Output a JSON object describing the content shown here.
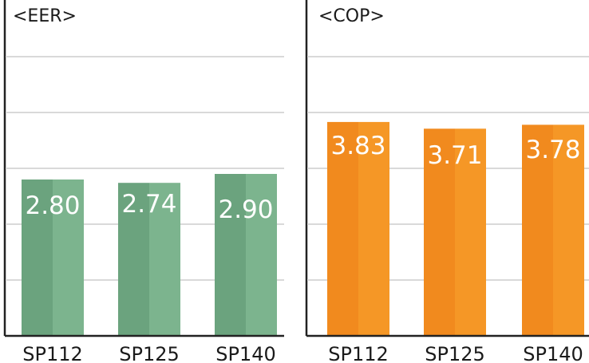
{
  "chart_data": [
    {
      "type": "bar",
      "title": "<EER>",
      "categories": [
        "SP112",
        "SP125",
        "SP140"
      ],
      "values": [
        2.8,
        2.74,
        2.9
      ],
      "value_labels": [
        "2.80",
        "2.74",
        "2.90"
      ],
      "ylim": [
        0,
        6
      ],
      "grid": true,
      "colors": {
        "dark": "#6ba37e",
        "light": "#7cb48e"
      }
    },
    {
      "type": "bar",
      "title": "<COP>",
      "categories": [
        "SP112",
        "SP125",
        "SP140"
      ],
      "values": [
        3.83,
        3.71,
        3.78
      ],
      "value_labels": [
        "3.83",
        "3.71",
        "3.78"
      ],
      "ylim": [
        0,
        6
      ],
      "grid": true,
      "colors": {
        "dark": "#f18a1e",
        "light": "#f59726"
      }
    }
  ]
}
